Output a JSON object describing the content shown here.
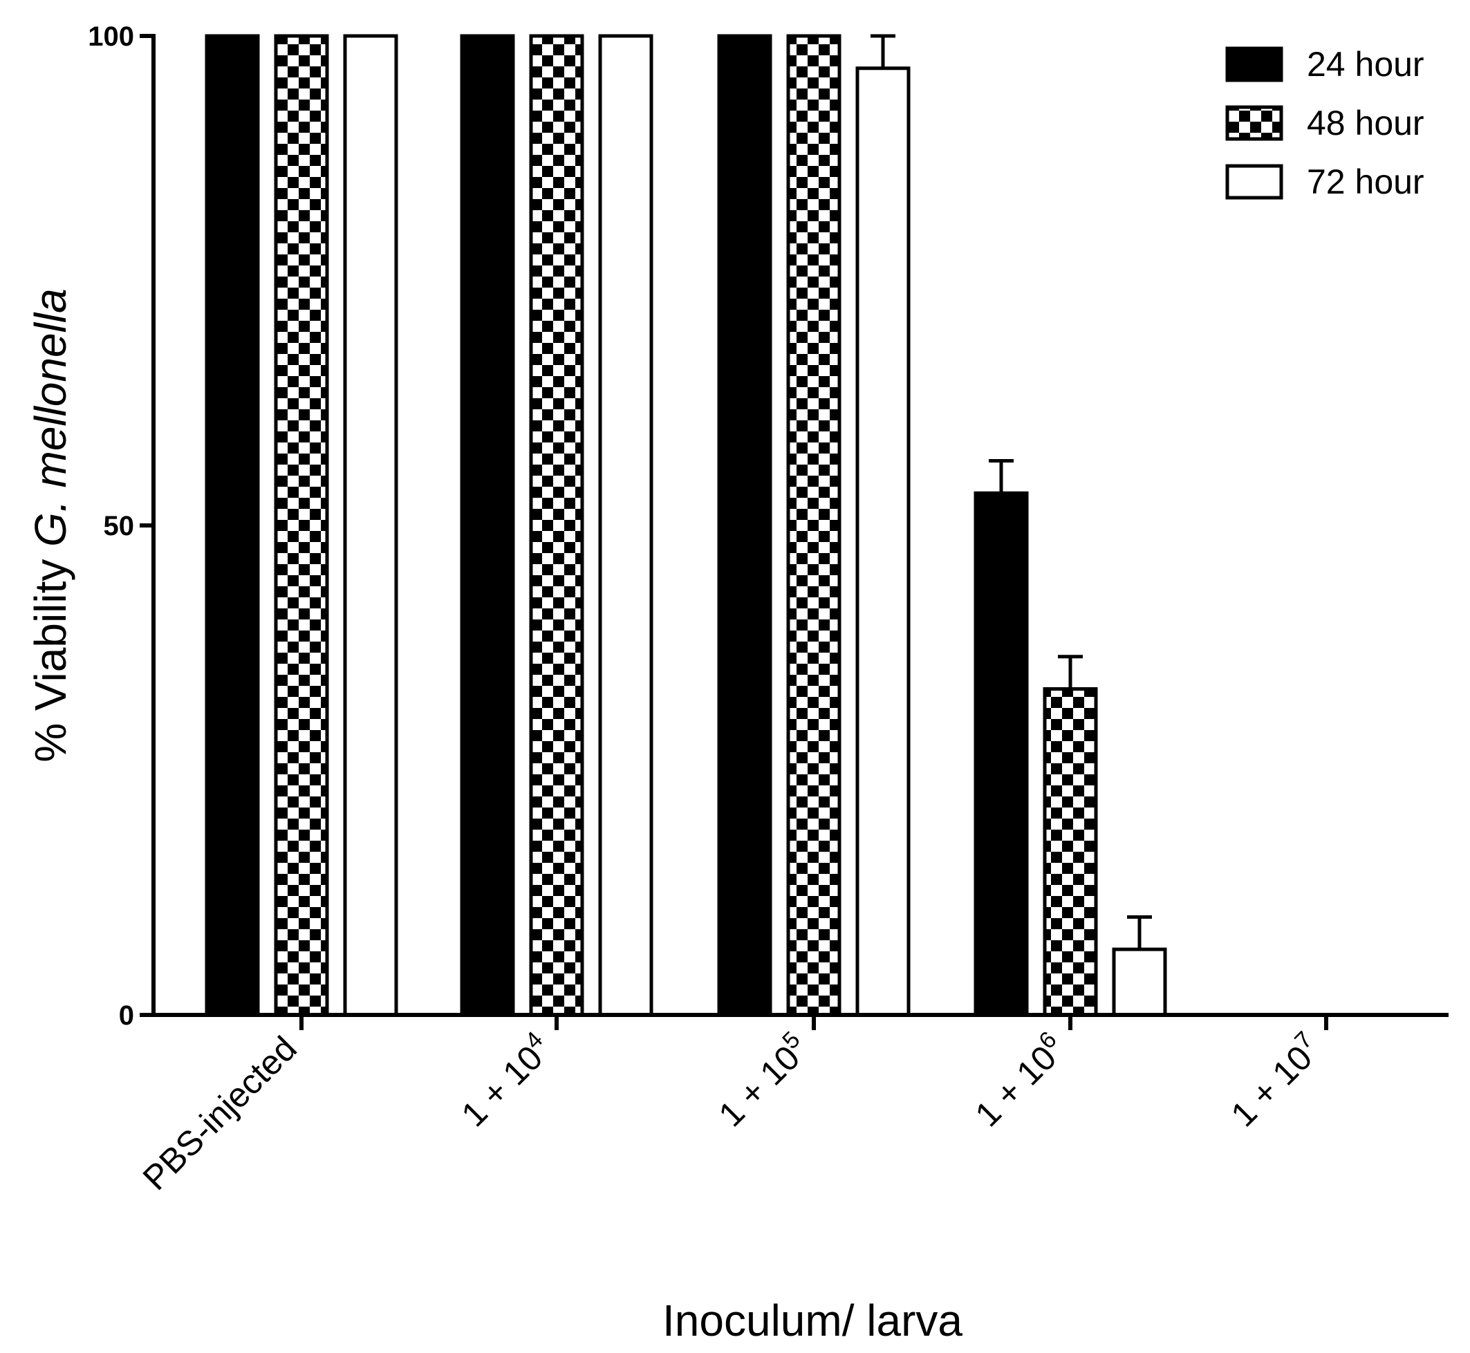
{
  "chart_data": {
    "type": "bar",
    "xlabel": "Inoculum/ larva",
    "ylabel_parts": [
      "% Viability ",
      "G. mellonella"
    ],
    "ylim": [
      0,
      100
    ],
    "yticks": [
      0,
      50,
      100
    ],
    "categories": [
      {
        "base": "PBS-injected",
        "exp": ""
      },
      {
        "base": "1 + 10",
        "exp": "4"
      },
      {
        "base": "1 + 10",
        "exp": "5"
      },
      {
        "base": "1 + 10",
        "exp": "6"
      },
      {
        "base": "1 + 10",
        "exp": "7"
      }
    ],
    "series": [
      {
        "name": "24 hour",
        "fill": "solid",
        "values": [
          100,
          100,
          100,
          53.3,
          0
        ],
        "errors": [
          0,
          0,
          0,
          3.3,
          0
        ]
      },
      {
        "name": "48 hour",
        "fill": "checker",
        "values": [
          100,
          100,
          100,
          33.3,
          0
        ],
        "errors": [
          0,
          0,
          0,
          3.3,
          0
        ]
      },
      {
        "name": "72 hour",
        "fill": "open",
        "values": [
          100,
          100,
          96.7,
          6.7,
          0
        ],
        "errors": [
          0,
          0,
          3.3,
          3.3,
          0
        ]
      }
    ],
    "legend_position": "top-right",
    "grid": false
  }
}
